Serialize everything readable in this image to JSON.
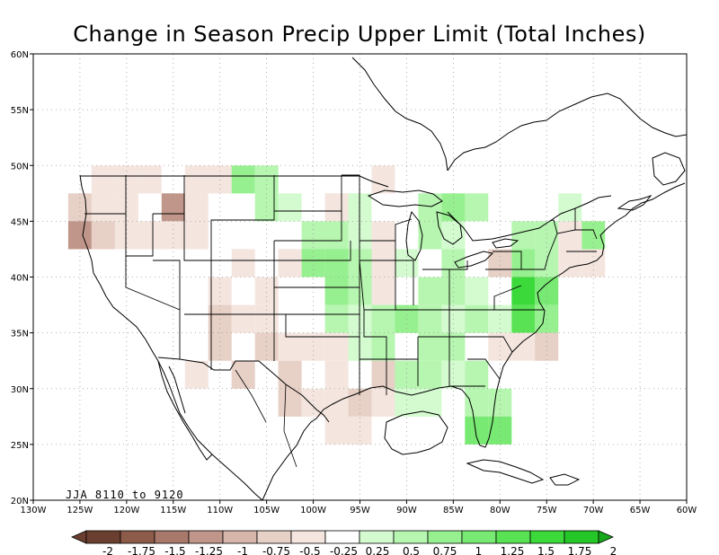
{
  "title": "Change in Season Precip Upper Limit (Total Inches)",
  "period_label": "JJA 8110 to 9120",
  "axes": {
    "lon_ticks": [
      "130W",
      "125W",
      "120W",
      "115W",
      "110W",
      "105W",
      "100W",
      "95W",
      "90W",
      "85W",
      "80W",
      "75W",
      "70W",
      "65W",
      "60W"
    ],
    "lat_ticks": [
      "20N",
      "25N",
      "30N",
      "35N",
      "40N",
      "45N",
      "50N",
      "55N",
      "60N"
    ],
    "lon_range": [
      -130,
      -60
    ],
    "lat_range": [
      20,
      60
    ],
    "grid": "dotted"
  },
  "colorbar": {
    "labels": [
      "-2",
      "-1.75",
      "-1.5",
      "-1.25",
      "-1",
      "-0.75",
      "-0.5",
      "-0.25",
      "0.25",
      "0.5",
      "0.75",
      "1",
      "1.25",
      "1.5",
      "1.75",
      "2"
    ],
    "colors": [
      "#6b3f30",
      "#8c5b4a",
      "#a8796a",
      "#c0968a",
      "#d6b5aa",
      "#e7d0c6",
      "#f4e6df",
      "#ffffff",
      "#d4fbd0",
      "#b6f6b0",
      "#97f08f",
      "#78e972",
      "#58e254",
      "#3bd93a",
      "#25c627",
      "#16a81a"
    ]
  },
  "chart_data": {
    "type": "heatmap",
    "cell_size_deg": 2.5,
    "cells": [
      {
        "lon": -122.5,
        "lat": 48.75,
        "v": -0.5
      },
      {
        "lon": -120,
        "lat": 48.75,
        "v": -0.5
      },
      {
        "lon": -117.5,
        "lat": 48.75,
        "v": -0.25
      },
      {
        "lon": -112.5,
        "lat": 48.75,
        "v": -0.5
      },
      {
        "lon": -110,
        "lat": 48.75,
        "v": -0.25
      },
      {
        "lon": -107.5,
        "lat": 48.75,
        "v": 0.75
      },
      {
        "lon": -105,
        "lat": 48.75,
        "v": 0.5
      },
      {
        "lon": -125,
        "lat": 46.25,
        "v": -0.75
      },
      {
        "lon": -122.5,
        "lat": 46.25,
        "v": -0.5
      },
      {
        "lon": -120,
        "lat": 46.25,
        "v": -0.25
      },
      {
        "lon": -115,
        "lat": 46.25,
        "v": -1.25
      },
      {
        "lon": -112.5,
        "lat": 46.25,
        "v": -0.5
      },
      {
        "lon": -105,
        "lat": 46.25,
        "v": 0.5
      },
      {
        "lon": -102.5,
        "lat": 46.25,
        "v": 0.25
      },
      {
        "lon": -125,
        "lat": 43.75,
        "v": -1.25
      },
      {
        "lon": -122.5,
        "lat": 43.75,
        "v": -0.75
      },
      {
        "lon": -120,
        "lat": 43.75,
        "v": -0.25
      },
      {
        "lon": -117.5,
        "lat": 43.75,
        "v": -0.5
      },
      {
        "lon": -115,
        "lat": 43.75,
        "v": -0.5
      },
      {
        "lon": -112.5,
        "lat": 43.75,
        "v": -0.25
      },
      {
        "lon": -97.5,
        "lat": 46.25,
        "v": -0.25
      },
      {
        "lon": -95,
        "lat": 46.25,
        "v": 0.25
      },
      {
        "lon": -92.5,
        "lat": 48.75,
        "v": -0.25
      },
      {
        "lon": -87.5,
        "lat": 46.25,
        "v": 0.5
      },
      {
        "lon": -85,
        "lat": 46.25,
        "v": 0.75
      },
      {
        "lon": -82.5,
        "lat": 46.25,
        "v": 0.5
      },
      {
        "lon": -100,
        "lat": 43.75,
        "v": 0.5
      },
      {
        "lon": -97.5,
        "lat": 43.75,
        "v": 0.5
      },
      {
        "lon": -95,
        "lat": 43.75,
        "v": 0.25
      },
      {
        "lon": -92.5,
        "lat": 43.75,
        "v": -0.25
      },
      {
        "lon": -87.5,
        "lat": 43.75,
        "v": 0.5
      },
      {
        "lon": -85,
        "lat": 43.75,
        "v": 0.25
      },
      {
        "lon": -107.5,
        "lat": 41.25,
        "v": -0.25
      },
      {
        "lon": -102.5,
        "lat": 41.25,
        "v": -0.5
      },
      {
        "lon": -100,
        "lat": 41.25,
        "v": 0.75
      },
      {
        "lon": -97.5,
        "lat": 41.25,
        "v": 0.75
      },
      {
        "lon": -95,
        "lat": 41.25,
        "v": 0.5
      },
      {
        "lon": -92.5,
        "lat": 41.25,
        "v": -0.25
      },
      {
        "lon": -90,
        "lat": 41.25,
        "v": 0.25
      },
      {
        "lon": -85,
        "lat": 41.25,
        "v": 0.5
      },
      {
        "lon": -80,
        "lat": 41.25,
        "v": -0.75
      },
      {
        "lon": -77.5,
        "lat": 41.25,
        "v": 0.75
      },
      {
        "lon": -75,
        "lat": 41.25,
        "v": 0.5
      },
      {
        "lon": -72.5,
        "lat": 41.25,
        "v": -0.25
      },
      {
        "lon": -70,
        "lat": 41.25,
        "v": -0.5
      },
      {
        "lon": -77.5,
        "lat": 43.75,
        "v": 0.5
      },
      {
        "lon": -75,
        "lat": 43.75,
        "v": 0.5
      },
      {
        "lon": -72.5,
        "lat": 46.25,
        "v": 0.25
      },
      {
        "lon": -70,
        "lat": 43.75,
        "v": 0.75
      },
      {
        "lon": -72.5,
        "lat": 43.75,
        "v": -0.25
      },
      {
        "lon": -110,
        "lat": 38.75,
        "v": -0.5
      },
      {
        "lon": -105,
        "lat": 38.75,
        "v": -0.25
      },
      {
        "lon": -97.5,
        "lat": 38.75,
        "v": 0.75
      },
      {
        "lon": -95,
        "lat": 38.75,
        "v": 0.5
      },
      {
        "lon": -92.5,
        "lat": 38.75,
        "v": -0.25
      },
      {
        "lon": -87.5,
        "lat": 38.75,
        "v": 0.5
      },
      {
        "lon": -85,
        "lat": 38.75,
        "v": 0.5
      },
      {
        "lon": -82.5,
        "lat": 38.75,
        "v": 0.25
      },
      {
        "lon": -77.5,
        "lat": 38.75,
        "v": 1.5
      },
      {
        "lon": -75,
        "lat": 38.75,
        "v": 1.0
      },
      {
        "lon": -110,
        "lat": 36.25,
        "v": -0.75
      },
      {
        "lon": -107.5,
        "lat": 36.25,
        "v": -0.25
      },
      {
        "lon": -105,
        "lat": 36.25,
        "v": -0.5
      },
      {
        "lon": -97.5,
        "lat": 36.25,
        "v": 0.5
      },
      {
        "lon": -95,
        "lat": 36.25,
        "v": 0.25
      },
      {
        "lon": -92.5,
        "lat": 36.25,
        "v": 0.5
      },
      {
        "lon": -90,
        "lat": 36.25,
        "v": 0.75
      },
      {
        "lon": -87.5,
        "lat": 36.25,
        "v": 0.5
      },
      {
        "lon": -85,
        "lat": 36.25,
        "v": 0.25
      },
      {
        "lon": -82.5,
        "lat": 36.25,
        "v": 0.5
      },
      {
        "lon": -80,
        "lat": 36.25,
        "v": 0.25
      },
      {
        "lon": -77.5,
        "lat": 36.25,
        "v": 1.25
      },
      {
        "lon": -75,
        "lat": 36.25,
        "v": 0.75
      },
      {
        "lon": -110,
        "lat": 33.75,
        "v": -0.75
      },
      {
        "lon": -105,
        "lat": 33.75,
        "v": -0.75
      },
      {
        "lon": -102.5,
        "lat": 33.75,
        "v": -0.5
      },
      {
        "lon": -100,
        "lat": 33.75,
        "v": -0.5
      },
      {
        "lon": -97.5,
        "lat": 33.75,
        "v": -0.25
      },
      {
        "lon": -95,
        "lat": 33.75,
        "v": 0.25
      },
      {
        "lon": -92.5,
        "lat": 33.75,
        "v": 0.5
      },
      {
        "lon": -87.5,
        "lat": 33.75,
        "v": 0.5
      },
      {
        "lon": -85,
        "lat": 33.75,
        "v": 0.5
      },
      {
        "lon": -80,
        "lat": 33.75,
        "v": -0.5
      },
      {
        "lon": -77.5,
        "lat": 33.75,
        "v": -0.25
      },
      {
        "lon": -75,
        "lat": 33.75,
        "v": -0.75
      },
      {
        "lon": -112.5,
        "lat": 31.25,
        "v": -0.25
      },
      {
        "lon": -107.5,
        "lat": 31.25,
        "v": -0.75
      },
      {
        "lon": -102.5,
        "lat": 31.25,
        "v": -0.75
      },
      {
        "lon": -97.5,
        "lat": 31.25,
        "v": -0.25
      },
      {
        "lon": -92.5,
        "lat": 31.25,
        "v": -0.75
      },
      {
        "lon": -90,
        "lat": 31.25,
        "v": 0.5
      },
      {
        "lon": -87.5,
        "lat": 31.25,
        "v": 0.5
      },
      {
        "lon": -85,
        "lat": 31.25,
        "v": 0.25
      },
      {
        "lon": -82.5,
        "lat": 31.25,
        "v": 0.5
      },
      {
        "lon": -102.5,
        "lat": 28.75,
        "v": -0.75
      },
      {
        "lon": -100,
        "lat": 28.75,
        "v": -0.25
      },
      {
        "lon": -97.5,
        "lat": 28.75,
        "v": -0.25
      },
      {
        "lon": -95,
        "lat": 28.75,
        "v": -0.75
      },
      {
        "lon": -92.5,
        "lat": 28.75,
        "v": -0.5
      },
      {
        "lon": -90,
        "lat": 28.75,
        "v": 0.25
      },
      {
        "lon": -87.5,
        "lat": 28.75,
        "v": 0.25
      },
      {
        "lon": -82.5,
        "lat": 28.75,
        "v": 0.5
      },
      {
        "lon": -80,
        "lat": 28.75,
        "v": 0.5
      },
      {
        "lon": -97.5,
        "lat": 26.25,
        "v": -0.5
      },
      {
        "lon": -95,
        "lat": 26.25,
        "v": -0.25
      },
      {
        "lon": -82.5,
        "lat": 26.25,
        "v": 1.0
      },
      {
        "lon": -80,
        "lat": 26.25,
        "v": 1.0
      }
    ]
  }
}
